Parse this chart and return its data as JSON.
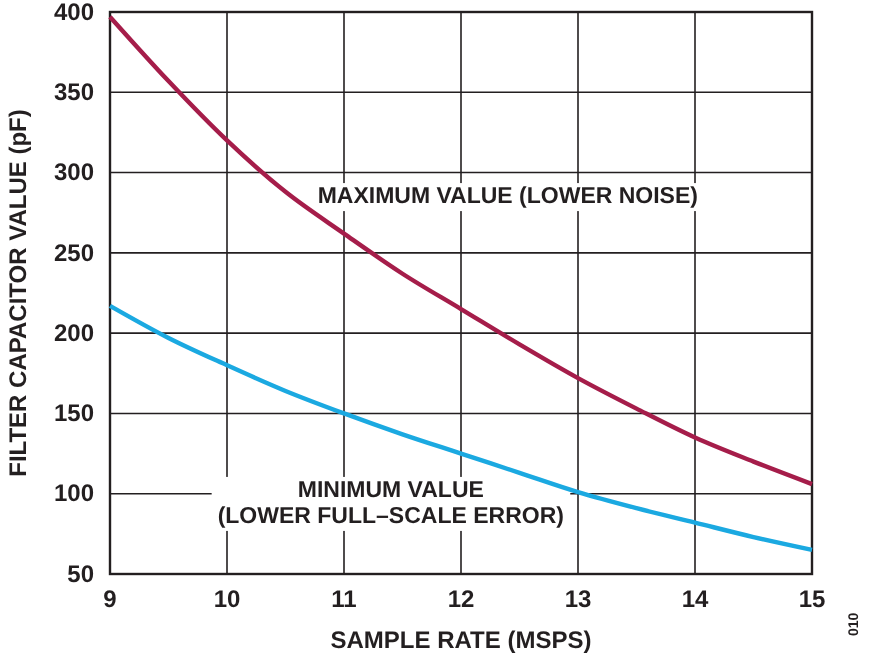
{
  "chart_data": {
    "type": "line",
    "xlabel": "SAMPLE RATE (MSPS)",
    "ylabel": "FILTER CAPACITOR VALUE (pF)",
    "x": [
      9,
      9.5,
      10,
      10.5,
      11,
      11.5,
      12,
      12.5,
      13,
      13.5,
      14,
      14.5,
      15
    ],
    "series": [
      {
        "name": "MAXIMUM VALUE (LOWER NOISE)",
        "color": "#a51d4a",
        "values": [
          397,
          357,
          320,
          288,
          262,
          237,
          215,
          193,
          172,
          153,
          135,
          120,
          106
        ]
      },
      {
        "name": "MINIMUM VALUE\n(LOWER FULL–SCALE ERROR)",
        "color": "#1ba9e1",
        "values": [
          217,
          197,
          180,
          164,
          150,
          137,
          125,
          113,
          101,
          91,
          82,
          73,
          65
        ]
      }
    ],
    "xlim": [
      9,
      15
    ],
    "xticks": [
      9,
      10,
      11,
      12,
      13,
      14,
      15
    ],
    "ylim": [
      50,
      400
    ],
    "yticks": [
      50,
      100,
      150,
      200,
      250,
      300,
      350,
      400
    ],
    "grid": true,
    "legend": false,
    "marker": "none",
    "line_style": "solid",
    "annotations": [
      "010"
    ]
  }
}
